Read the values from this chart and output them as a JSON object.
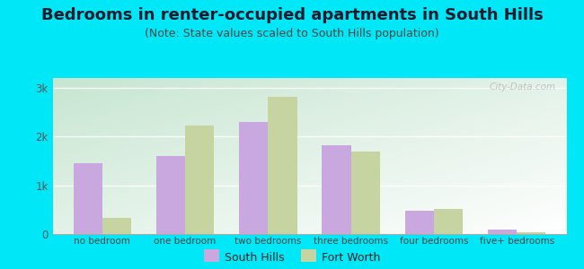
{
  "title": "Bedrooms in renter-occupied apartments in South Hills",
  "subtitle": "(Note: State values scaled to South Hills population)",
  "categories": [
    "no bedroom",
    "one bedroom",
    "two bedrooms",
    "three bedrooms",
    "four bedrooms",
    "five+ bedrooms"
  ],
  "south_hills": [
    1450,
    1600,
    2300,
    1820,
    470,
    90
  ],
  "fort_worth": [
    330,
    2220,
    2820,
    1700,
    510,
    35
  ],
  "south_hills_color": "#c9a8e0",
  "fort_worth_color": "#c5d4a0",
  "background_color": "#00e8f8",
  "title_color": "#1a1a2e",
  "subtitle_color": "#444444",
  "title_fontsize": 13,
  "subtitle_fontsize": 9,
  "ylim": [
    0,
    3200
  ],
  "yticks": [
    0,
    1000,
    2000,
    3000
  ],
  "ytick_labels": [
    "0",
    "1k",
    "2k",
    "3k"
  ],
  "bar_width": 0.35,
  "watermark": "City-Data.com"
}
